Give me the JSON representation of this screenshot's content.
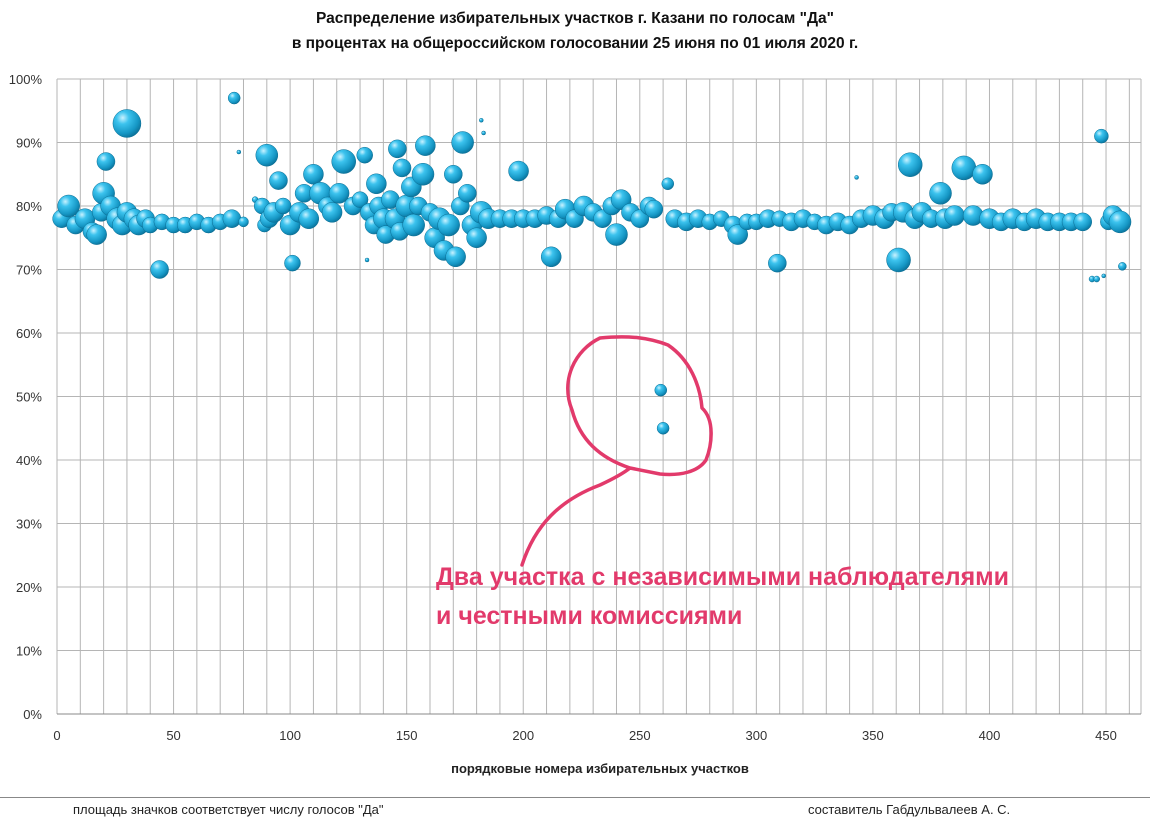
{
  "chart_data": {
    "type": "scatter",
    "subtype": "bubble",
    "title_line1": "Распределение избирательных  участков  г. Казани по голосам \"Да\"",
    "title_line2": "в процентах на общероссийском голосовании 25 июня по 01 июля 2020 г.",
    "xlabel": "порядковые номера избирательных участков",
    "ylabel": "",
    "xlim": [
      0,
      465
    ],
    "ylim": [
      0,
      100
    ],
    "x_ticks": [
      "0",
      "50",
      "100",
      "150",
      "200",
      "250",
      "300",
      "350",
      "400",
      "450"
    ],
    "y_ticks": [
      "0%",
      "10%",
      "20%",
      "30%",
      "40%",
      "50%",
      "60%",
      "70%",
      "80%",
      "90%",
      "100%"
    ],
    "grid": true,
    "bubble_color": "#1ba8d6",
    "points": [
      {
        "x": 2,
        "y": 78,
        "r": 9
      },
      {
        "x": 5,
        "y": 80,
        "r": 11
      },
      {
        "x": 8,
        "y": 77,
        "r": 9
      },
      {
        "x": 12,
        "y": 78,
        "r": 10
      },
      {
        "x": 15,
        "y": 76,
        "r": 9
      },
      {
        "x": 17,
        "y": 75.5,
        "r": 10
      },
      {
        "x": 19,
        "y": 79,
        "r": 9
      },
      {
        "x": 20,
        "y": 82,
        "r": 11
      },
      {
        "x": 21,
        "y": 87,
        "r": 9
      },
      {
        "x": 23,
        "y": 80,
        "r": 10
      },
      {
        "x": 26,
        "y": 78,
        "r": 11
      },
      {
        "x": 28,
        "y": 77,
        "r": 10
      },
      {
        "x": 30,
        "y": 79,
        "r": 10
      },
      {
        "x": 30,
        "y": 93,
        "r": 14
      },
      {
        "x": 33,
        "y": 78,
        "r": 10
      },
      {
        "x": 35,
        "y": 77,
        "r": 10
      },
      {
        "x": 38,
        "y": 78,
        "r": 9
      },
      {
        "x": 40,
        "y": 77,
        "r": 8
      },
      {
        "x": 44,
        "y": 70,
        "r": 9
      },
      {
        "x": 45,
        "y": 77.5,
        "r": 8
      },
      {
        "x": 50,
        "y": 77,
        "r": 8
      },
      {
        "x": 55,
        "y": 77,
        "r": 8
      },
      {
        "x": 60,
        "y": 77.5,
        "r": 8
      },
      {
        "x": 65,
        "y": 77,
        "r": 8
      },
      {
        "x": 70,
        "y": 77.5,
        "r": 8
      },
      {
        "x": 75,
        "y": 78,
        "r": 9
      },
      {
        "x": 76,
        "y": 97,
        "r": 6
      },
      {
        "x": 78,
        "y": 88.5,
        "r": 2
      },
      {
        "x": 80,
        "y": 77.5,
        "r": 5
      },
      {
        "x": 85,
        "y": 81,
        "r": 3
      },
      {
        "x": 88,
        "y": 80,
        "r": 8
      },
      {
        "x": 89,
        "y": 77,
        "r": 7
      },
      {
        "x": 90,
        "y": 88,
        "r": 11
      },
      {
        "x": 91,
        "y": 78,
        "r": 9
      },
      {
        "x": 93,
        "y": 79,
        "r": 10
      },
      {
        "x": 95,
        "y": 84,
        "r": 9
      },
      {
        "x": 97,
        "y": 80,
        "r": 8
      },
      {
        "x": 100,
        "y": 77,
        "r": 10
      },
      {
        "x": 101,
        "y": 71,
        "r": 8
      },
      {
        "x": 104,
        "y": 79,
        "r": 10
      },
      {
        "x": 106,
        "y": 82,
        "r": 9
      },
      {
        "x": 108,
        "y": 78,
        "r": 10
      },
      {
        "x": 110,
        "y": 85,
        "r": 10
      },
      {
        "x": 113,
        "y": 82,
        "r": 11
      },
      {
        "x": 116,
        "y": 80,
        "r": 9
      },
      {
        "x": 118,
        "y": 79,
        "r": 10
      },
      {
        "x": 121,
        "y": 82,
        "r": 10
      },
      {
        "x": 123,
        "y": 87,
        "r": 12
      },
      {
        "x": 127,
        "y": 80,
        "r": 9
      },
      {
        "x": 130,
        "y": 81,
        "r": 8
      },
      {
        "x": 132,
        "y": 88,
        "r": 8
      },
      {
        "x": 133,
        "y": 71.5,
        "r": 2
      },
      {
        "x": 134,
        "y": 79,
        "r": 9
      },
      {
        "x": 136,
        "y": 77,
        "r": 9
      },
      {
        "x": 137,
        "y": 83.5,
        "r": 10
      },
      {
        "x": 138,
        "y": 80,
        "r": 9
      },
      {
        "x": 140,
        "y": 78,
        "r": 10
      },
      {
        "x": 141,
        "y": 75.5,
        "r": 9
      },
      {
        "x": 143,
        "y": 81,
        "r": 9
      },
      {
        "x": 145,
        "y": 78,
        "r": 10
      },
      {
        "x": 146,
        "y": 89,
        "r": 9
      },
      {
        "x": 147,
        "y": 76,
        "r": 9
      },
      {
        "x": 148,
        "y": 86,
        "r": 9
      },
      {
        "x": 150,
        "y": 80,
        "r": 11
      },
      {
        "x": 152,
        "y": 83,
        "r": 10
      },
      {
        "x": 153,
        "y": 77,
        "r": 11
      },
      {
        "x": 155,
        "y": 80,
        "r": 9
      },
      {
        "x": 157,
        "y": 85,
        "r": 11
      },
      {
        "x": 158,
        "y": 89.5,
        "r": 10
      },
      {
        "x": 160,
        "y": 79,
        "r": 9
      },
      {
        "x": 162,
        "y": 75,
        "r": 10
      },
      {
        "x": 164,
        "y": 78,
        "r": 11
      },
      {
        "x": 166,
        "y": 73,
        "r": 10
      },
      {
        "x": 168,
        "y": 77,
        "r": 11
      },
      {
        "x": 170,
        "y": 85,
        "r": 9
      },
      {
        "x": 171,
        "y": 72,
        "r": 10
      },
      {
        "x": 173,
        "y": 80,
        "r": 9
      },
      {
        "x": 174,
        "y": 90,
        "r": 11
      },
      {
        "x": 176,
        "y": 82,
        "r": 9
      },
      {
        "x": 178,
        "y": 77,
        "r": 10
      },
      {
        "x": 180,
        "y": 75,
        "r": 10
      },
      {
        "x": 182,
        "y": 79,
        "r": 11
      },
      {
        "x": 182,
        "y": 93.5,
        "r": 2
      },
      {
        "x": 183,
        "y": 91.5,
        "r": 2
      },
      {
        "x": 185,
        "y": 78,
        "r": 10
      },
      {
        "x": 190,
        "y": 78,
        "r": 9
      },
      {
        "x": 195,
        "y": 78,
        "r": 9
      },
      {
        "x": 198,
        "y": 85.5,
        "r": 10
      },
      {
        "x": 200,
        "y": 78,
        "r": 9
      },
      {
        "x": 205,
        "y": 78,
        "r": 9
      },
      {
        "x": 210,
        "y": 78.5,
        "r": 9
      },
      {
        "x": 212,
        "y": 72,
        "r": 10
      },
      {
        "x": 215,
        "y": 78,
        "r": 9
      },
      {
        "x": 218,
        "y": 79.5,
        "r": 10
      },
      {
        "x": 222,
        "y": 78,
        "r": 9
      },
      {
        "x": 226,
        "y": 80,
        "r": 10
      },
      {
        "x": 230,
        "y": 79,
        "r": 9
      },
      {
        "x": 234,
        "y": 78,
        "r": 9
      },
      {
        "x": 238,
        "y": 80,
        "r": 9
      },
      {
        "x": 240,
        "y": 75.5,
        "r": 11
      },
      {
        "x": 242,
        "y": 81,
        "r": 10
      },
      {
        "x": 246,
        "y": 79,
        "r": 9
      },
      {
        "x": 250,
        "y": 78,
        "r": 9
      },
      {
        "x": 254,
        "y": 80,
        "r": 9
      },
      {
        "x": 256,
        "y": 79.5,
        "r": 9
      },
      {
        "x": 259,
        "y": 51,
        "r": 6
      },
      {
        "x": 260,
        "y": 45,
        "r": 6
      },
      {
        "x": 262,
        "y": 83.5,
        "r": 6
      },
      {
        "x": 265,
        "y": 78,
        "r": 9
      },
      {
        "x": 270,
        "y": 77.5,
        "r": 9
      },
      {
        "x": 275,
        "y": 78,
        "r": 9
      },
      {
        "x": 280,
        "y": 77.5,
        "r": 8
      },
      {
        "x": 285,
        "y": 78,
        "r": 8
      },
      {
        "x": 290,
        "y": 77,
        "r": 9
      },
      {
        "x": 292,
        "y": 75.5,
        "r": 10
      },
      {
        "x": 296,
        "y": 77.5,
        "r": 8
      },
      {
        "x": 300,
        "y": 77.5,
        "r": 8
      },
      {
        "x": 305,
        "y": 78,
        "r": 9
      },
      {
        "x": 309,
        "y": 71,
        "r": 9
      },
      {
        "x": 310,
        "y": 78,
        "r": 8
      },
      {
        "x": 315,
        "y": 77.5,
        "r": 9
      },
      {
        "x": 320,
        "y": 78,
        "r": 9
      },
      {
        "x": 325,
        "y": 77.5,
        "r": 8
      },
      {
        "x": 330,
        "y": 77,
        "r": 9
      },
      {
        "x": 335,
        "y": 77.5,
        "r": 9
      },
      {
        "x": 340,
        "y": 77,
        "r": 9
      },
      {
        "x": 343,
        "y": 84.5,
        "r": 2
      },
      {
        "x": 345,
        "y": 78,
        "r": 9
      },
      {
        "x": 350,
        "y": 78.5,
        "r": 10
      },
      {
        "x": 355,
        "y": 78,
        "r": 10
      },
      {
        "x": 358,
        "y": 79,
        "r": 9
      },
      {
        "x": 361,
        "y": 71.5,
        "r": 12
      },
      {
        "x": 363,
        "y": 79,
        "r": 10
      },
      {
        "x": 366,
        "y": 86.5,
        "r": 12
      },
      {
        "x": 368,
        "y": 78,
        "r": 10
      },
      {
        "x": 371,
        "y": 79,
        "r": 10
      },
      {
        "x": 375,
        "y": 78,
        "r": 9
      },
      {
        "x": 379,
        "y": 82,
        "r": 11
      },
      {
        "x": 381,
        "y": 78,
        "r": 10
      },
      {
        "x": 385,
        "y": 78.5,
        "r": 10
      },
      {
        "x": 389,
        "y": 86,
        "r": 12
      },
      {
        "x": 393,
        "y": 78.5,
        "r": 10
      },
      {
        "x": 397,
        "y": 85,
        "r": 10
      },
      {
        "x": 400,
        "y": 78,
        "r": 10
      },
      {
        "x": 405,
        "y": 77.5,
        "r": 9
      },
      {
        "x": 410,
        "y": 78,
        "r": 10
      },
      {
        "x": 415,
        "y": 77.5,
        "r": 9
      },
      {
        "x": 420,
        "y": 78,
        "r": 10
      },
      {
        "x": 425,
        "y": 77.5,
        "r": 9
      },
      {
        "x": 430,
        "y": 77.5,
        "r": 9
      },
      {
        "x": 435,
        "y": 77.5,
        "r": 9
      },
      {
        "x": 440,
        "y": 77.5,
        "r": 9
      },
      {
        "x": 444,
        "y": 68.5,
        "r": 3
      },
      {
        "x": 446,
        "y": 68.5,
        "r": 3
      },
      {
        "x": 448,
        "y": 91,
        "r": 7
      },
      {
        "x": 449,
        "y": 69,
        "r": 2
      },
      {
        "x": 451,
        "y": 77.5,
        "r": 8
      },
      {
        "x": 453,
        "y": 78.5,
        "r": 10
      },
      {
        "x": 456,
        "y": 77.5,
        "r": 11
      },
      {
        "x": 457,
        "y": 70.5,
        "r": 4
      }
    ]
  },
  "annotation": {
    "line1": "Два участка с независимыми наблюдателями",
    "line2": "и честными комиссиями",
    "color": "#e23a6b"
  },
  "footer": {
    "left": "площадь значков соответствует числу голосов \"Да\"",
    "right": "составитель Габдульвалеев А. С."
  }
}
